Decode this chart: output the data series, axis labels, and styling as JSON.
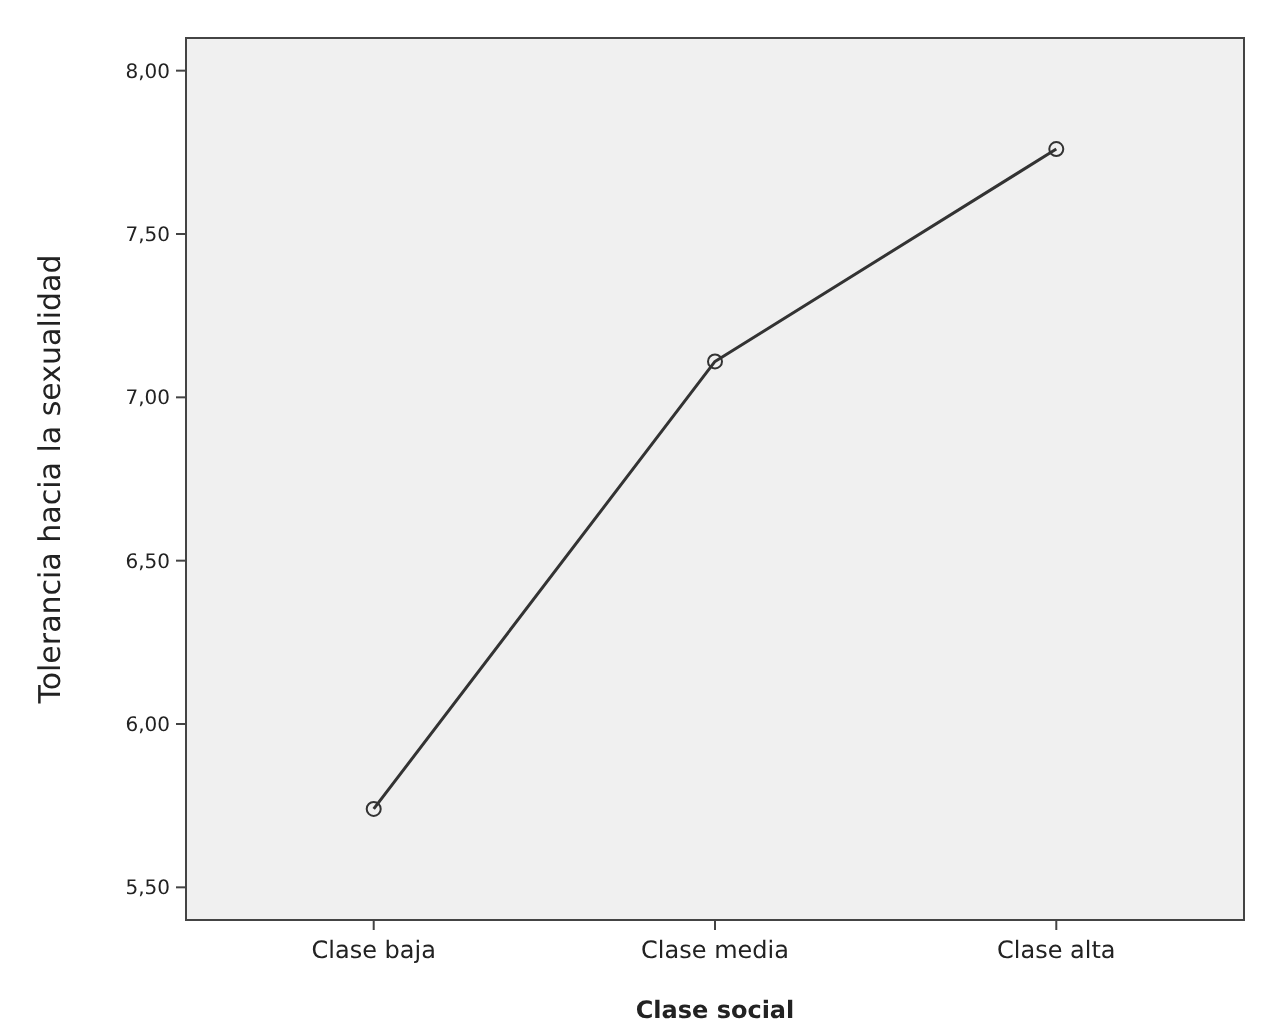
{
  "chart_data": {
    "type": "line",
    "xlabel": "Clase social",
    "ylabel": "Tolerancia hacia la sexualidad",
    "categories": [
      "Clase baja",
      "Clase media",
      "Clase alta"
    ],
    "series": [
      {
        "color": "#333333",
        "values": [
          5.74,
          7.11,
          7.76
        ]
      }
    ],
    "ylim": [
      5.4,
      8.1
    ],
    "yticks": [
      {
        "value": 5.5,
        "label": "5,50"
      },
      {
        "value": 6,
        "label": "6,00"
      },
      {
        "value": 6.5,
        "label": "6,50"
      },
      {
        "value": 7,
        "label": "7,00"
      },
      {
        "value": 7.5,
        "label": "7,50"
      },
      {
        "value": 8,
        "label": "8,00"
      }
    ],
    "marker": "circle",
    "line_style": "solid"
  }
}
